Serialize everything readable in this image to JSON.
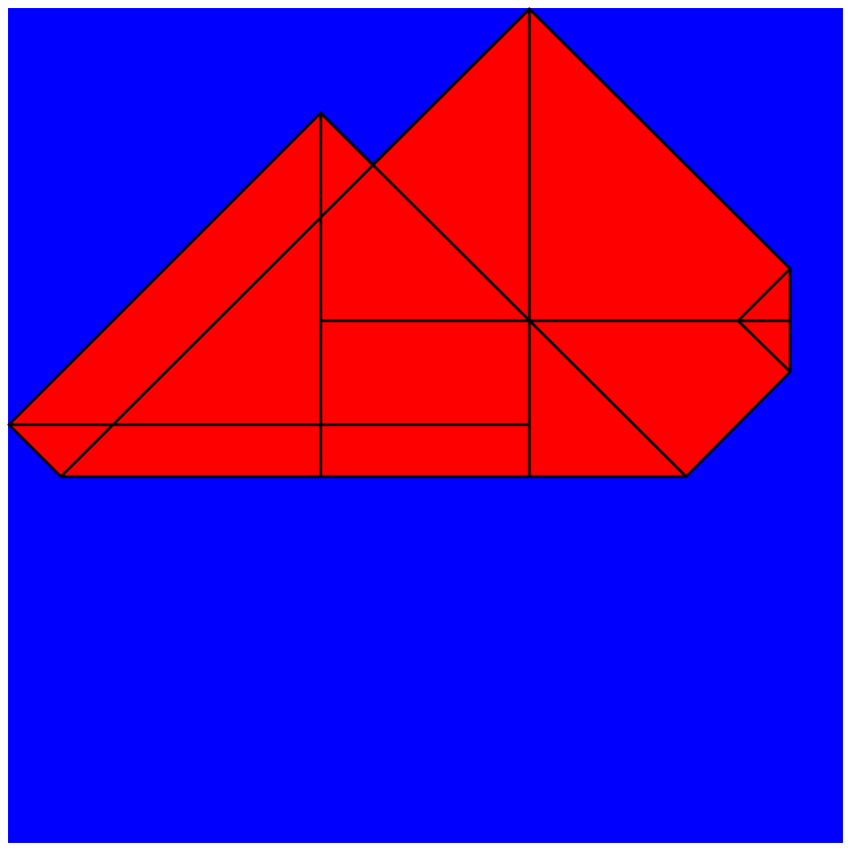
{
  "diagram": {
    "kind": "folded-shape",
    "colors": {
      "background": "#0000ff",
      "shape_fill": "#ff0000",
      "edge_stroke": "#000000",
      "page_border": "#ffffff"
    }
  }
}
